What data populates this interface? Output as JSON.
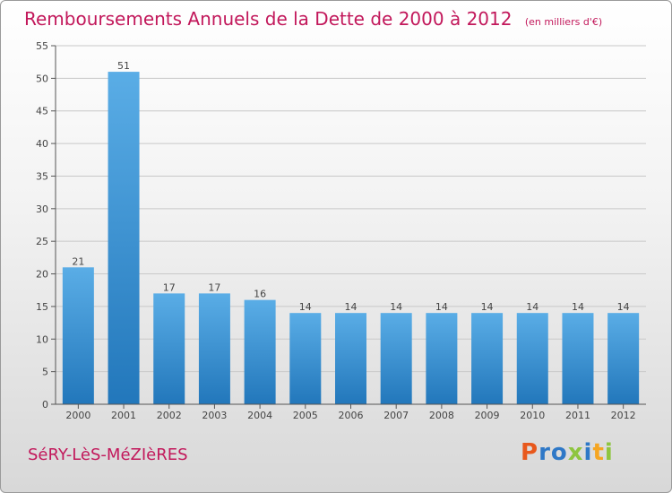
{
  "title": "Remboursements Annuels de la Dette de 2000 à 2012",
  "subtitle": "(en milliers d'€)",
  "town": "SéRY-LèS-MéZIèRES",
  "logo": {
    "text": "Proxiti",
    "colors": [
      "#e8581c",
      "#2e78c7",
      "#2e78c7",
      "#8ec53f",
      "#2e78c7",
      "#f5a623",
      "#8ec53f"
    ]
  },
  "colors": {
    "bar_light": "#5aade6",
    "bar_dark": "#2277bb",
    "title": "#c2185b"
  },
  "chart_data": {
    "type": "bar",
    "categories": [
      "2000",
      "2001",
      "2002",
      "2003",
      "2004",
      "2005",
      "2006",
      "2007",
      "2008",
      "2009",
      "2010",
      "2011",
      "2012"
    ],
    "values": [
      21,
      51,
      17,
      17,
      16,
      14,
      14,
      14,
      14,
      14,
      14,
      14,
      14
    ],
    "data_labels": [
      "21",
      "51",
      "17",
      "17",
      "16",
      "14",
      "14",
      "14",
      "14",
      "14",
      "14",
      "14",
      "14"
    ],
    "yticks": [
      "0",
      "5",
      "10",
      "15",
      "20",
      "25",
      "30",
      "35",
      "40",
      "45",
      "50",
      "55"
    ],
    "ylim": [
      0,
      55
    ],
    "grid": true
  }
}
